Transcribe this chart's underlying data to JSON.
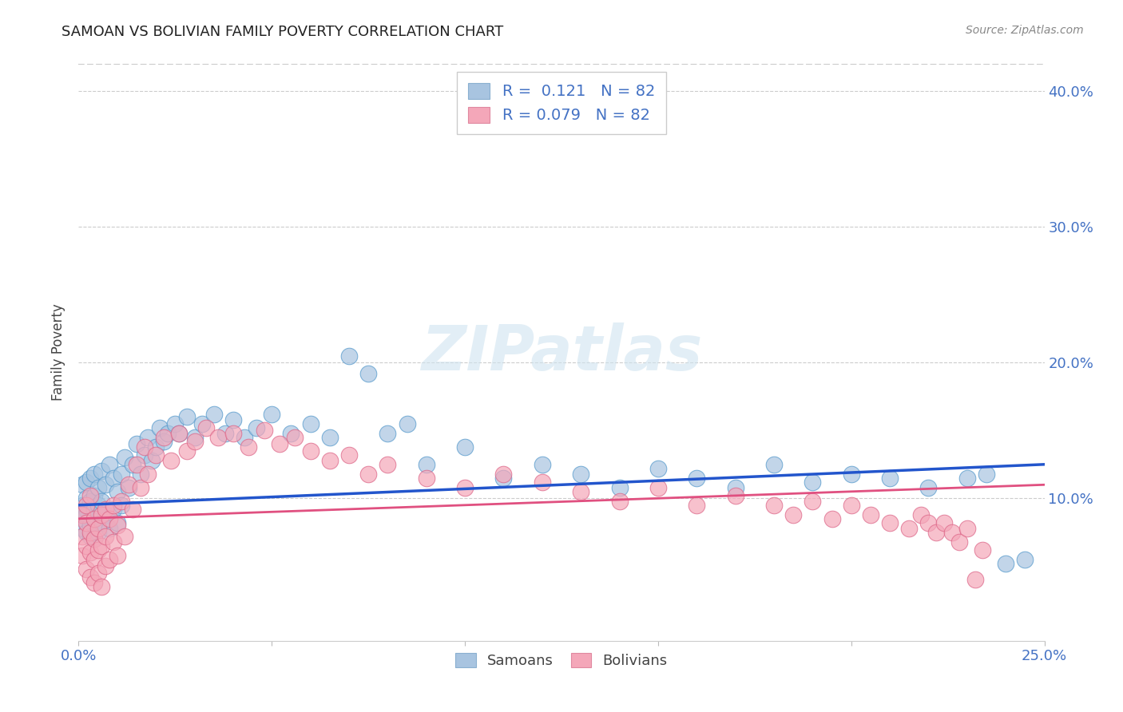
{
  "title": "SAMOAN VS BOLIVIAN FAMILY POVERTY CORRELATION CHART",
  "source": "Source: ZipAtlas.com",
  "ylabel": "Family Poverty",
  "x_min": 0.0,
  "x_max": 0.25,
  "y_min": -0.005,
  "y_max": 0.42,
  "samoan_color": "#a8c4e0",
  "bolivian_color": "#f4a7b9",
  "samoan_line_color": "#2255cc",
  "bolivian_line_color": "#e05080",
  "background_color": "#ffffff",
  "watermark": "ZIPatlas",
  "legend_r_samoan": "0.121",
  "legend_r_bolivian": "0.079",
  "legend_n": "82",
  "samoan_x": [
    0.001,
    0.001,
    0.001,
    0.001,
    0.002,
    0.002,
    0.002,
    0.002,
    0.002,
    0.003,
    0.003,
    0.003,
    0.003,
    0.004,
    0.004,
    0.004,
    0.004,
    0.004,
    0.005,
    0.005,
    0.005,
    0.006,
    0.006,
    0.006,
    0.007,
    0.007,
    0.008,
    0.008,
    0.009,
    0.009,
    0.01,
    0.01,
    0.011,
    0.011,
    0.012,
    0.013,
    0.014,
    0.015,
    0.016,
    0.017,
    0.018,
    0.019,
    0.02,
    0.021,
    0.022,
    0.023,
    0.025,
    0.026,
    0.028,
    0.03,
    0.032,
    0.035,
    0.038,
    0.04,
    0.043,
    0.046,
    0.05,
    0.055,
    0.06,
    0.065,
    0.07,
    0.075,
    0.08,
    0.085,
    0.09,
    0.1,
    0.11,
    0.12,
    0.13,
    0.14,
    0.15,
    0.16,
    0.17,
    0.18,
    0.19,
    0.2,
    0.21,
    0.22,
    0.23,
    0.235,
    0.24,
    0.245
  ],
  "samoan_y": [
    0.095,
    0.085,
    0.11,
    0.078,
    0.1,
    0.092,
    0.075,
    0.112,
    0.088,
    0.098,
    0.08,
    0.115,
    0.072,
    0.102,
    0.085,
    0.118,
    0.07,
    0.092,
    0.108,
    0.075,
    0.095,
    0.12,
    0.082,
    0.098,
    0.11,
    0.088,
    0.125,
    0.078,
    0.115,
    0.092,
    0.105,
    0.082,
    0.118,
    0.095,
    0.13,
    0.108,
    0.125,
    0.14,
    0.118,
    0.132,
    0.145,
    0.128,
    0.138,
    0.152,
    0.142,
    0.148,
    0.155,
    0.148,
    0.16,
    0.145,
    0.155,
    0.162,
    0.148,
    0.158,
    0.145,
    0.152,
    0.162,
    0.148,
    0.155,
    0.145,
    0.205,
    0.192,
    0.148,
    0.155,
    0.125,
    0.138,
    0.115,
    0.125,
    0.118,
    0.108,
    0.122,
    0.115,
    0.108,
    0.125,
    0.112,
    0.118,
    0.115,
    0.108,
    0.115,
    0.118,
    0.052,
    0.055
  ],
  "bolivian_x": [
    0.001,
    0.001,
    0.001,
    0.002,
    0.002,
    0.002,
    0.002,
    0.003,
    0.003,
    0.003,
    0.003,
    0.004,
    0.004,
    0.004,
    0.004,
    0.005,
    0.005,
    0.005,
    0.006,
    0.006,
    0.006,
    0.007,
    0.007,
    0.007,
    0.008,
    0.008,
    0.009,
    0.009,
    0.01,
    0.01,
    0.011,
    0.012,
    0.013,
    0.014,
    0.015,
    0.016,
    0.017,
    0.018,
    0.02,
    0.022,
    0.024,
    0.026,
    0.028,
    0.03,
    0.033,
    0.036,
    0.04,
    0.044,
    0.048,
    0.052,
    0.056,
    0.06,
    0.065,
    0.07,
    0.075,
    0.08,
    0.09,
    0.1,
    0.11,
    0.12,
    0.13,
    0.14,
    0.15,
    0.16,
    0.17,
    0.18,
    0.185,
    0.19,
    0.195,
    0.2,
    0.205,
    0.21,
    0.215,
    0.218,
    0.22,
    0.222,
    0.224,
    0.226,
    0.228,
    0.23,
    0.232,
    0.234
  ],
  "bolivian_y": [
    0.088,
    0.072,
    0.058,
    0.082,
    0.065,
    0.048,
    0.095,
    0.075,
    0.06,
    0.042,
    0.102,
    0.07,
    0.055,
    0.038,
    0.085,
    0.078,
    0.062,
    0.045,
    0.088,
    0.065,
    0.035,
    0.092,
    0.072,
    0.05,
    0.085,
    0.055,
    0.095,
    0.068,
    0.08,
    0.058,
    0.098,
    0.072,
    0.11,
    0.092,
    0.125,
    0.108,
    0.138,
    0.118,
    0.132,
    0.145,
    0.128,
    0.148,
    0.135,
    0.142,
    0.152,
    0.145,
    0.148,
    0.138,
    0.15,
    0.14,
    0.145,
    0.135,
    0.128,
    0.132,
    0.118,
    0.125,
    0.115,
    0.108,
    0.118,
    0.112,
    0.105,
    0.098,
    0.108,
    0.095,
    0.102,
    0.095,
    0.088,
    0.098,
    0.085,
    0.095,
    0.088,
    0.082,
    0.078,
    0.088,
    0.082,
    0.075,
    0.082,
    0.075,
    0.068,
    0.078,
    0.04,
    0.062
  ]
}
